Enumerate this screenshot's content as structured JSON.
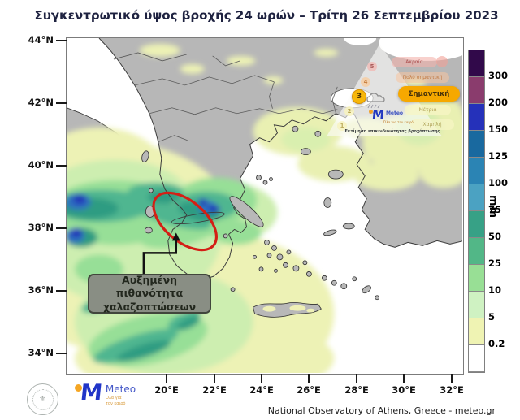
{
  "title": "Συγκεντρωτικό ύψος βροχής 24 ωρών – Τρίτη 26 Σεπτεμβρίου 2023",
  "axes": {
    "lat": [
      "44°N",
      "42°N",
      "40°N",
      "38°N",
      "36°N",
      "34°N"
    ],
    "lon": [
      "20°E",
      "22°E",
      "24°E",
      "26°E",
      "28°E",
      "30°E",
      "32°E"
    ]
  },
  "colorbar": {
    "unit": "mm",
    "tick_labels": [
      "300",
      "200",
      "150",
      "125",
      "100",
      "75",
      "50",
      "25",
      "10",
      "5",
      "0.2"
    ],
    "segment_colors": [
      "#31094a",
      "#8a3c6d",
      "#2531ba",
      "#19699f",
      "#2b84b4",
      "#4ba2c2",
      "#37a186",
      "#52b787",
      "#98df95",
      "#cff2c2",
      "#eff3b3",
      "#ffffff"
    ]
  },
  "annotation": {
    "line1": "Αυξημένη πιθανότητα",
    "line2": "χαλαζοπτώσεων"
  },
  "hazard_legend": {
    "levels": [
      {
        "num": "5",
        "label": "Ακραία",
        "active": false
      },
      {
        "num": "4",
        "label": "Πολύ σημαντική",
        "active": false
      },
      {
        "num": "3",
        "label": "Σημαντική",
        "active": true
      },
      {
        "num": "2",
        "label": "Μέτρια",
        "active": false
      },
      {
        "num": "1",
        "label": "Χαμηλή",
        "active": false
      }
    ],
    "caption": "Εκτίμηση επικινδυνότητας βροχόπτωσης",
    "brand": "Meteo"
  },
  "footer": {
    "brand": "Meteo",
    "brand_sub1": "Όλα για",
    "brand_sub2": "τον καιρό",
    "credit": "National Observatory of Athens, Greece - meteo.gr"
  }
}
